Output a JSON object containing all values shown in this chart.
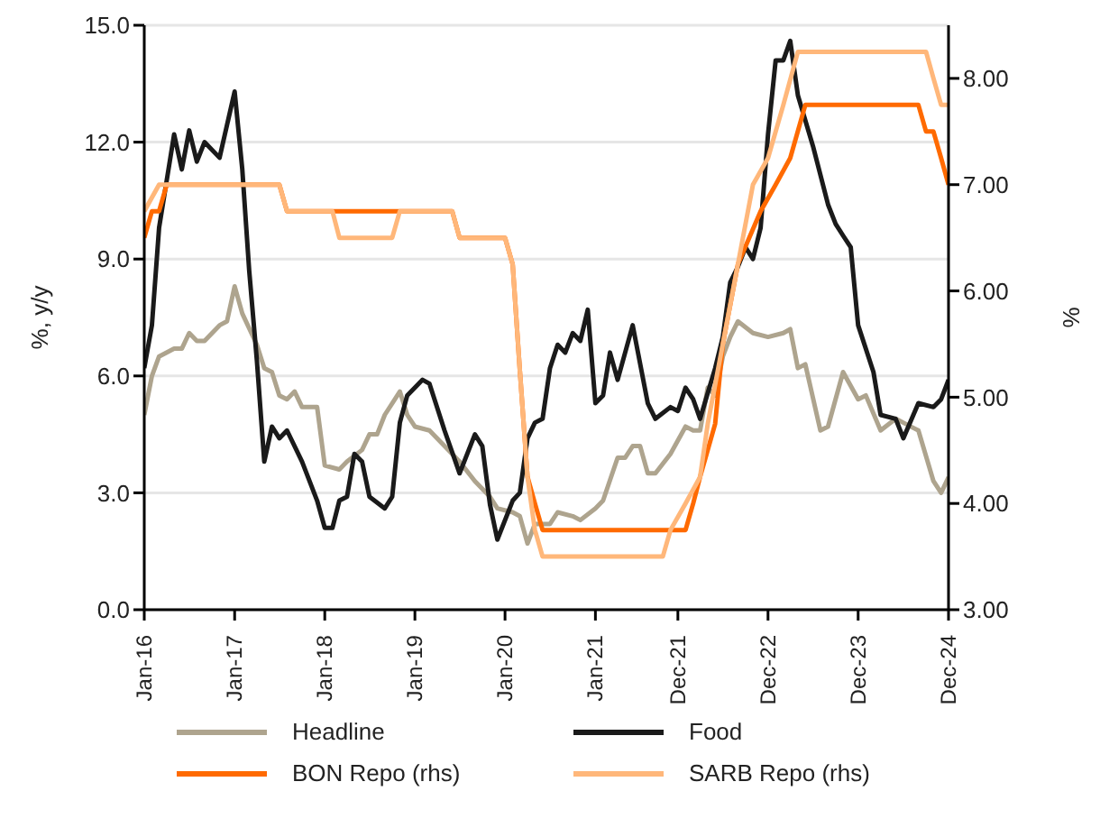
{
  "chart_data": {
    "type": "line",
    "ylabel": "%, y/y",
    "y2label": "%",
    "grid": "y",
    "legend": "bottom",
    "line_style": "solid",
    "marker": "none",
    "xlim": [
      "2016-01",
      "2024-12"
    ],
    "xticks": [
      {
        "value": "2016-01",
        "label": "Jan-16"
      },
      {
        "value": "2017-01",
        "label": "Jan-17"
      },
      {
        "value": "2018-01",
        "label": "Jan-18"
      },
      {
        "value": "2019-01",
        "label": "Jan-19"
      },
      {
        "value": "2020-01",
        "label": "Jan-20"
      },
      {
        "value": "2021-01",
        "label": "Jan-21"
      },
      {
        "value": "2021-12",
        "label": "Dec-21"
      },
      {
        "value": "2022-12",
        "label": "Dec-22"
      },
      {
        "value": "2023-12",
        "label": "Dec-23"
      },
      {
        "value": "2024-12",
        "label": "Dec-24"
      }
    ],
    "ylim": [
      0,
      15
    ],
    "yticks": [
      {
        "value": 0,
        "label": "0.0"
      },
      {
        "value": 3,
        "label": "3.0"
      },
      {
        "value": 6,
        "label": "6.0"
      },
      {
        "value": 9,
        "label": "9.0"
      },
      {
        "value": 12,
        "label": "12.0"
      },
      {
        "value": 15,
        "label": "15.0"
      }
    ],
    "y2lim": [
      3,
      8.5
    ],
    "y2ticks": [
      {
        "value": 3,
        "label": "3.00"
      },
      {
        "value": 4,
        "label": "4.00"
      },
      {
        "value": 5,
        "label": "5.00"
      },
      {
        "value": 6,
        "label": "6.00"
      },
      {
        "value": 7,
        "label": "7.00"
      },
      {
        "value": 8,
        "label": "8.00"
      }
    ],
    "series": [
      {
        "name": "Headline",
        "color": "#aea48e",
        "x": [
          "2016-01",
          "2016-02",
          "2016-03",
          "2016-05",
          "2016-06",
          "2016-07",
          "2016-08",
          "2016-09",
          "2016-11",
          "2016-12",
          "2017-01",
          "2017-02",
          "2017-04",
          "2017-05",
          "2017-06",
          "2017-07",
          "2017-08",
          "2017-09",
          "2017-10",
          "2017-12",
          "2018-01",
          "2018-03",
          "2018-04",
          "2018-06",
          "2018-07",
          "2018-08",
          "2018-09",
          "2018-11",
          "2018-12",
          "2019-01",
          "2019-03",
          "2019-05",
          "2019-07",
          "2019-09",
          "2019-11",
          "2019-12",
          "2020-02",
          "2020-03",
          "2020-04",
          "2020-05",
          "2020-07",
          "2020-08",
          "2020-10",
          "2020-11",
          "2021-01",
          "2021-02",
          "2021-04",
          "2021-05",
          "2021-06",
          "2021-07",
          "2021-08",
          "2021-09",
          "2021-11",
          "2022-01",
          "2022-02",
          "2022-03",
          "2022-04",
          "2022-05",
          "2022-06",
          "2022-07",
          "2022-08",
          "2022-10",
          "2022-12",
          "2023-02",
          "2023-03",
          "2023-04",
          "2023-05",
          "2023-07",
          "2023-08",
          "2023-10",
          "2023-12",
          "2024-01",
          "2024-03",
          "2024-05",
          "2024-06",
          "2024-08",
          "2024-10",
          "2024-11",
          "2024-12"
        ],
        "values": [
          5.0,
          6.0,
          6.5,
          6.7,
          6.7,
          7.1,
          6.9,
          6.9,
          7.3,
          7.4,
          8.3,
          7.6,
          6.8,
          6.2,
          6.1,
          5.5,
          5.4,
          5.6,
          5.2,
          5.2,
          3.7,
          3.6,
          3.8,
          4.1,
          4.5,
          4.5,
          5.0,
          5.6,
          5.0,
          4.7,
          4.6,
          4.2,
          3.8,
          3.3,
          2.9,
          2.6,
          2.5,
          2.4,
          1.7,
          2.2,
          2.2,
          2.5,
          2.4,
          2.3,
          2.6,
          2.8,
          3.9,
          3.9,
          4.2,
          4.2,
          3.5,
          3.5,
          4.0,
          4.7,
          4.6,
          4.6,
          5.7,
          5.5,
          6.5,
          7.0,
          7.4,
          7.1,
          7.0,
          7.1,
          7.2,
          6.2,
          6.3,
          4.6,
          4.7,
          6.1,
          5.4,
          5.5,
          4.6,
          4.9,
          4.8,
          4.6,
          3.3,
          3.0,
          3.4
        ]
      },
      {
        "name": "Food",
        "color": "#1a1a1a",
        "x": [
          "2016-01",
          "2016-02",
          "2016-03",
          "2016-05",
          "2016-06",
          "2016-07",
          "2016-08",
          "2016-09",
          "2016-11",
          "2017-01",
          "2017-02",
          "2017-03",
          "2017-04",
          "2017-05",
          "2017-06",
          "2017-07",
          "2017-08",
          "2017-10",
          "2017-12",
          "2018-01",
          "2018-02",
          "2018-03",
          "2018-04",
          "2018-05",
          "2018-06",
          "2018-07",
          "2018-09",
          "2018-10",
          "2018-11",
          "2018-12",
          "2019-02",
          "2019-03",
          "2019-05",
          "2019-07",
          "2019-09",
          "2019-10",
          "2019-11",
          "2019-12",
          "2020-02",
          "2020-03",
          "2020-04",
          "2020-05",
          "2020-06",
          "2020-07",
          "2020-08",
          "2020-09",
          "2020-10",
          "2020-11",
          "2020-12",
          "2021-01",
          "2021-02",
          "2021-03",
          "2021-04",
          "2021-06",
          "2021-08",
          "2021-09",
          "2021-11",
          "2021-12",
          "2022-01",
          "2022-02",
          "2022-03",
          "2022-05",
          "2022-06",
          "2022-07",
          "2022-08",
          "2022-09",
          "2022-10",
          "2022-11",
          "2022-12",
          "2023-01",
          "2023-02",
          "2023-03",
          "2023-04",
          "2023-06",
          "2023-08",
          "2023-09",
          "2023-10",
          "2023-11",
          "2023-12",
          "2024-02",
          "2024-03",
          "2024-05",
          "2024-06",
          "2024-08",
          "2024-10",
          "2024-11",
          "2024-12"
        ],
        "values": [
          6.2,
          7.3,
          9.8,
          12.2,
          11.3,
          12.3,
          11.5,
          12.0,
          11.6,
          13.3,
          11.3,
          8.7,
          6.4,
          3.8,
          4.7,
          4.4,
          4.6,
          3.8,
          2.8,
          2.1,
          2.1,
          2.8,
          2.9,
          4.0,
          3.8,
          2.9,
          2.6,
          2.9,
          4.8,
          5.5,
          5.9,
          5.8,
          4.6,
          3.5,
          4.5,
          4.2,
          2.7,
          1.8,
          2.8,
          3.0,
          4.4,
          4.8,
          4.9,
          6.2,
          6.8,
          6.6,
          7.1,
          6.9,
          7.7,
          5.3,
          5.5,
          6.6,
          5.9,
          7.3,
          5.3,
          4.9,
          5.2,
          5.1,
          5.7,
          5.4,
          4.9,
          6.2,
          7.0,
          8.4,
          8.8,
          9.3,
          9.0,
          9.8,
          12.2,
          14.1,
          14.1,
          14.6,
          13.2,
          11.9,
          10.4,
          9.9,
          9.6,
          9.3,
          7.3,
          6.1,
          5.0,
          4.9,
          4.4,
          5.3,
          5.2,
          5.4,
          5.9
        ]
      },
      {
        "name": "BON Repo (rhs)",
        "color": "#ff6a00",
        "axis": "y2",
        "x": [
          "2016-01",
          "2016-02",
          "2016-03",
          "2016-04",
          "2017-07",
          "2017-08",
          "2019-06",
          "2019-07",
          "2020-01",
          "2020-02",
          "2020-03",
          "2020-04",
          "2020-05",
          "2020-06",
          "2022-01",
          "2022-02",
          "2022-03",
          "2022-05",
          "2022-06",
          "2022-08",
          "2022-11",
          "2023-01",
          "2023-03",
          "2023-05",
          "2024-08",
          "2024-09",
          "2024-10",
          "2024-11",
          "2024-12"
        ],
        "values": [
          6.5,
          6.75,
          6.75,
          7.0,
          7.0,
          6.75,
          6.75,
          6.5,
          6.5,
          6.25,
          5.25,
          4.25,
          4.0,
          3.75,
          3.75,
          4.0,
          4.25,
          4.75,
          5.5,
          6.25,
          6.75,
          7.0,
          7.25,
          7.75,
          7.75,
          7.5,
          7.5,
          7.25,
          7.0
        ]
      },
      {
        "name": "SARB Repo (rhs)",
        "color": "#ffb77a",
        "axis": "y2",
        "x": [
          "2016-01",
          "2016-03",
          "2017-07",
          "2017-08",
          "2018-02",
          "2018-03",
          "2018-10",
          "2018-11",
          "2019-06",
          "2019-07",
          "2020-01",
          "2020-02",
          "2020-03",
          "2020-04",
          "2020-05",
          "2020-06",
          "2021-10",
          "2021-11",
          "2022-01",
          "2022-03",
          "2022-04",
          "2022-06",
          "2022-08",
          "2022-10",
          "2022-12",
          "2023-02",
          "2023-04",
          "2024-09",
          "2024-10",
          "2024-11",
          "2024-12"
        ],
        "values": [
          6.75,
          7.0,
          7.0,
          6.75,
          6.75,
          6.5,
          6.5,
          6.75,
          6.75,
          6.5,
          6.5,
          6.25,
          5.25,
          4.25,
          3.75,
          3.5,
          3.5,
          3.75,
          4.0,
          4.25,
          4.75,
          5.5,
          6.25,
          7.0,
          7.25,
          7.75,
          8.25,
          8.25,
          8.0,
          7.75,
          7.75
        ]
      }
    ]
  }
}
